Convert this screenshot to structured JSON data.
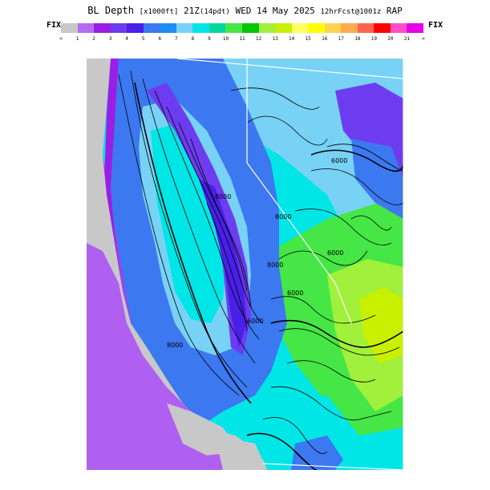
{
  "header": {
    "product": "BL Depth",
    "units": "[x1000ft]",
    "valid_time": "21Z",
    "local_time": "(14pdt)",
    "date": "WED 14 May 2025",
    "forecast": "12hrFcst@1001z",
    "model": "RAP"
  },
  "legend": {
    "left_label": "FIX",
    "right_label": "FIX",
    "bins": [
      {
        "label": "<",
        "color": "#c8c8c8"
      },
      {
        "label": "1",
        "color": "#b36cf0"
      },
      {
        "label": "2",
        "color": "#9a1ee6"
      },
      {
        "label": "3",
        "color": "#6e3cf0"
      },
      {
        "label": "4",
        "color": "#4820e8"
      },
      {
        "label": "5",
        "color": "#3c78f0"
      },
      {
        "label": "6",
        "color": "#1e8cf0"
      },
      {
        "label": "7",
        "color": "#78d2f5"
      },
      {
        "label": "8",
        "color": "#00e6e6"
      },
      {
        "label": "9",
        "color": "#00d7a0"
      },
      {
        "label": "10",
        "color": "#46e646"
      },
      {
        "label": "11",
        "color": "#00c800"
      },
      {
        "label": "12",
        "color": "#a0f03c"
      },
      {
        "label": "13",
        "color": "#c8f000"
      },
      {
        "label": "14",
        "color": "#ffff64"
      },
      {
        "label": "15",
        "color": "#ffff00"
      },
      {
        "label": "16",
        "color": "#ffd250"
      },
      {
        "label": "17",
        "color": "#ffaa50"
      },
      {
        "label": "18",
        "color": "#ff6450"
      },
      {
        "label": "19",
        "color": "#ff0000"
      },
      {
        "label": "20",
        "color": "#ff50c8"
      },
      {
        "label": "21",
        "color": "#e600e6"
      },
      {
        "label": ">",
        "color": ""
      }
    ]
  },
  "map": {
    "region": "California / Nevada",
    "contour_labels": [
      "6000",
      "8000",
      "6000",
      "8000",
      "8000",
      "6000",
      "6000",
      "8000"
    ],
    "colors": {
      "no_data": "#c8c8c8",
      "ocean_deep": "#b060f0",
      "ocean": "#a040f0",
      "valley_purple": "#6e3cf0",
      "valley_dark": "#4820e8",
      "blue": "#3c78f0",
      "light_blue": "#78d2f5",
      "cyan": "#00e6e6",
      "green": "#46e646",
      "lime": "#a0f03c",
      "yellow": "#c8f000",
      "contour": "#000000",
      "border": "#ffffff"
    }
  }
}
